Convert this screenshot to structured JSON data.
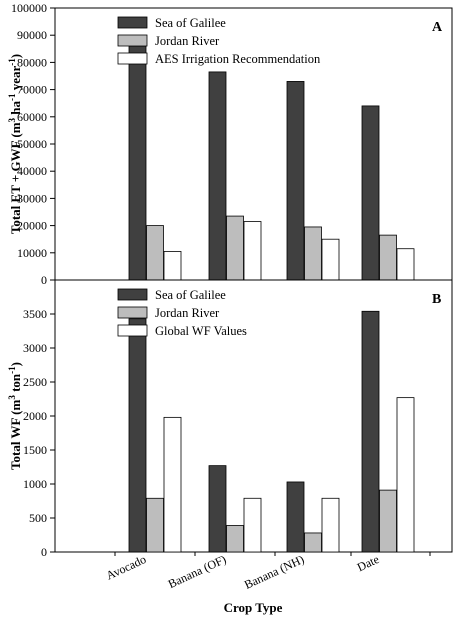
{
  "chart_data": {
    "type": "bar",
    "x_title": "Crop Type",
    "categories": [
      "Avocado",
      "Banana (OF)",
      "Banana (NH)",
      "Date"
    ],
    "panels": [
      {
        "letter": "A",
        "ylabel": "Total ET + GWF (m3 ha-1 year-1)",
        "ylabel_parts": {
          "a": "Total ET + GWF (m",
          "b": "3",
          "c": " ha",
          "d": "-1",
          "e": " year",
          "f": "-1",
          "g": ")"
        },
        "ylim": [
          0,
          100000
        ],
        "yticks": [
          "0",
          "10000",
          "20000",
          "30000",
          "40000",
          "50000",
          "60000",
          "70000",
          "80000",
          "90000",
          "100000"
        ],
        "series": [
          {
            "name": "Sea of Galilee",
            "color": "#404040",
            "values": [
              86000,
              76500,
              73000,
              64000
            ]
          },
          {
            "name": "Jordan River",
            "color": "#bdbdbd",
            "values": [
              20000,
              23500,
              19500,
              16500
            ]
          },
          {
            "name": "AES Irrigation Recommendation",
            "color": "#ffffff",
            "values": [
              10500,
              21500,
              15000,
              11500
            ]
          }
        ]
      },
      {
        "letter": "B",
        "ylabel": "Total WF (m3 ton-1)",
        "ylabel_parts": {
          "a": "Total WF (m",
          "b": "3",
          "c": " ton",
          "d": "-1",
          "e": ")"
        },
        "ylim": [
          0,
          4000
        ],
        "yticks": [
          "0",
          "500",
          "1000",
          "1500",
          "2000",
          "2500",
          "3000",
          "3500"
        ],
        "series": [
          {
            "name": "Sea of Galilee",
            "color": "#404040",
            "values": [
              3430,
              1270,
              1030,
              3540
            ]
          },
          {
            "name": "Jordan River",
            "color": "#bdbdbd",
            "values": [
              790,
              390,
              280,
              910
            ]
          },
          {
            "name": "Global WF Values",
            "color": "#ffffff",
            "values": [
              1980,
              790,
              790,
              2270
            ]
          }
        ]
      }
    ]
  }
}
